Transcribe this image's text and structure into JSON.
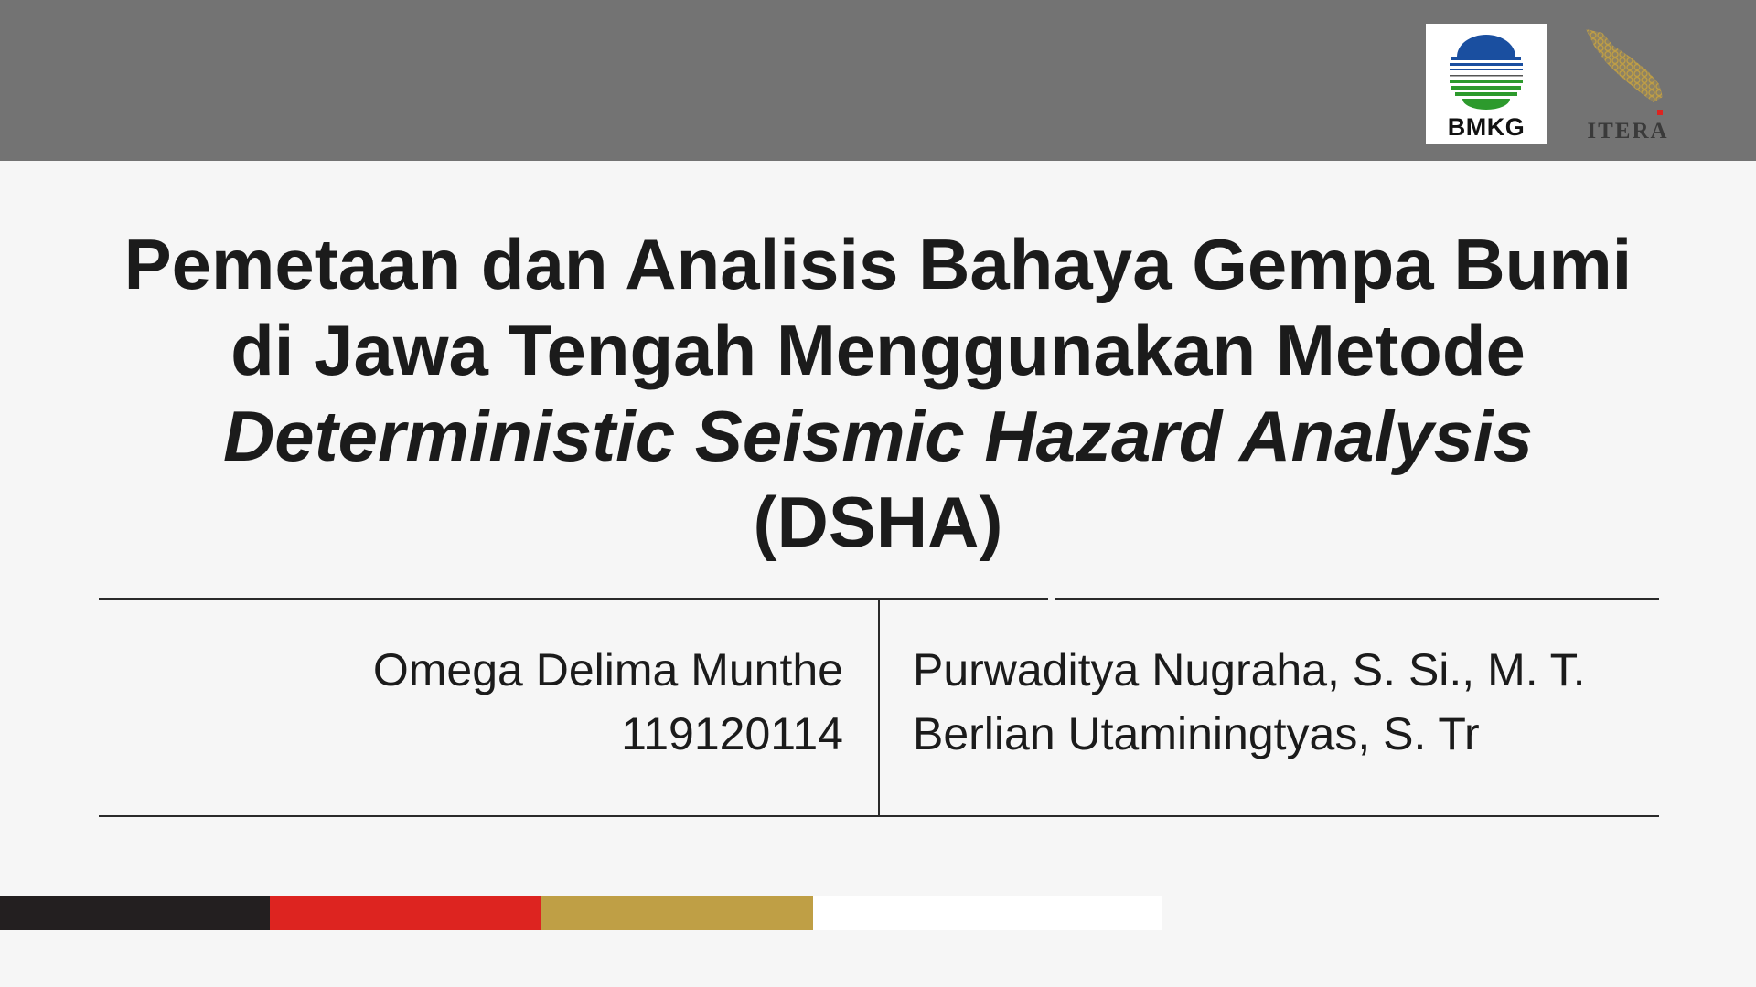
{
  "header": {
    "logos": [
      {
        "name": "bmkg-logo",
        "text": "BMKG"
      },
      {
        "name": "itera-logo",
        "text": "ITERA"
      }
    ],
    "band_color": "#737373"
  },
  "title": {
    "line1": "Pemetaan dan Analisis Bahaya Gempa Bumi",
    "line2": "di Jawa Tengah Menggunakan Metode",
    "line3": "Deterministic Seismic Hazard Analysis",
    "line4": "(DSHA)"
  },
  "author": {
    "name": "Omega Delima Munthe",
    "id": "119120114"
  },
  "supervisors": [
    "Purwaditya Nugraha, S. Si., M. T.",
    "Berlian Utaminingtyas, S. Tr"
  ],
  "color_strip": [
    "#231f20",
    "#dd2420",
    "#bf9f45",
    "#ffffff"
  ]
}
